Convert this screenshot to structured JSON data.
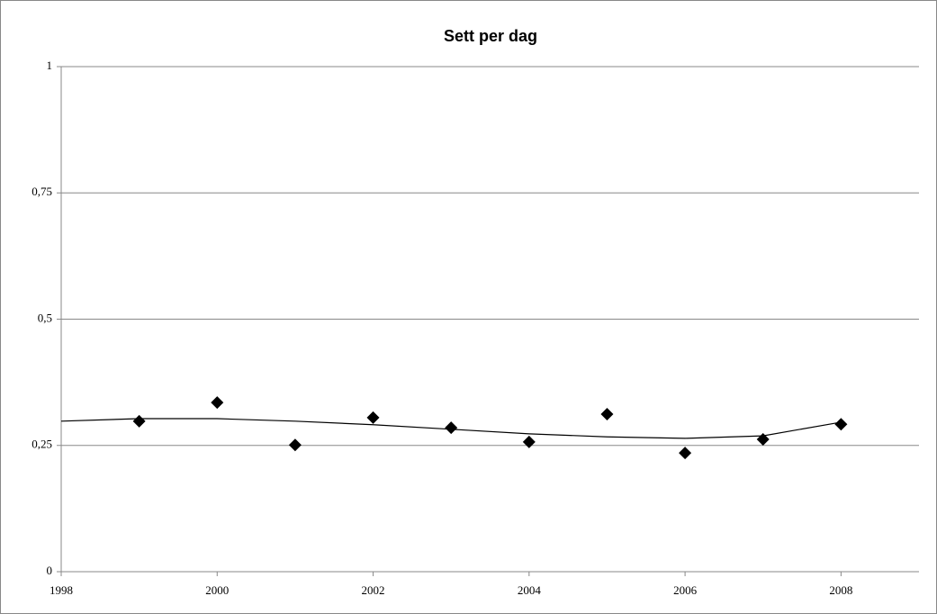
{
  "chart_data": {
    "type": "scatter",
    "title": "Sett per dag",
    "x": [
      1999,
      2000,
      2001,
      2002,
      2003,
      2004,
      2005,
      2006,
      2007,
      2008
    ],
    "series": [
      {
        "color": "#000000",
        "values": [
          0.298,
          0.335,
          0.251,
          0.305,
          0.285,
          0.257,
          0.312,
          0.235,
          0.262,
          0.292
        ]
      }
    ],
    "trendline": {
      "color": "#000000",
      "x": [
        1998,
        1999,
        2000,
        2001,
        2002,
        2003,
        2004,
        2005,
        2006,
        2007,
        2008
      ],
      "values": [
        0.298,
        0.303,
        0.303,
        0.298,
        0.291,
        0.282,
        0.273,
        0.267,
        0.264,
        0.269,
        0.296
      ]
    },
    "xlim": [
      1998,
      2009
    ],
    "xticks": [
      1998,
      2000,
      2002,
      2004,
      2006,
      2008
    ],
    "ylim": [
      0,
      1
    ],
    "yticks": [
      0,
      {
        "value": 0.25,
        "label": "0,25"
      },
      {
        "value": 0.5,
        "label": "0,5"
      },
      {
        "value": 0.75,
        "label": "0,75"
      },
      1
    ],
    "grid": true
  }
}
